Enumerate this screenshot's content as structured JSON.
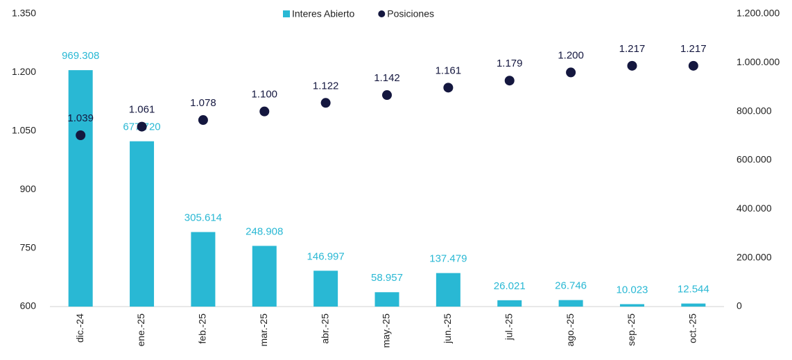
{
  "chart_data": {
    "type": "combo",
    "categories": [
      "dic.-24",
      "ene.-25",
      "feb.-25",
      "mar.-25",
      "abr.-25",
      "may.-25",
      "jun.-25",
      "jul.-25",
      "ago.-25",
      "sep.-25",
      "oct.-25"
    ],
    "series": [
      {
        "name": "Interes Abierto",
        "type": "bar",
        "axis": "y2",
        "color": "#29b8d4",
        "values": [
          969308,
          677720,
          305614,
          248908,
          146997,
          58957,
          137479,
          26021,
          26746,
          10023,
          12544
        ],
        "value_labels": [
          "969.308",
          "677.720",
          "305.614",
          "248.908",
          "146.997",
          "58.957",
          "137.479",
          "26.021",
          "26.746",
          "10.023",
          "12.544"
        ]
      },
      {
        "name": "Posiciones",
        "type": "scatter",
        "axis": "y",
        "color": "#14173f",
        "values": [
          1039,
          1061,
          1078,
          1100,
          1122,
          1142,
          1161,
          1179,
          1200,
          1217,
          1217
        ],
        "value_labels": [
          "1.039",
          "1.061",
          "1.078",
          "1.100",
          "1.122",
          "1.142",
          "1.161",
          "1.179",
          "1.200",
          "1.217",
          "1.217"
        ]
      }
    ],
    "ylim": [
      600,
      1350
    ],
    "yticks": [
      600,
      750,
      900,
      {
        "value": 1050,
        "label": "1.050"
      },
      {
        "value": 1200,
        "label": "1.200"
      },
      {
        "value": 1350,
        "label": "1.350"
      }
    ],
    "y2lim": [
      0,
      1200000
    ],
    "y2ticks": [
      0,
      {
        "value": 200000,
        "label": "200.000"
      },
      {
        "value": 400000,
        "label": "400.000"
      },
      {
        "value": 600000,
        "label": "600.000"
      },
      {
        "value": 800000,
        "label": "800.000"
      },
      {
        "value": 1000000,
        "label": "1.000.000"
      },
      {
        "value": 1200000,
        "label": "1.200.000"
      }
    ],
    "grid": false,
    "legend": "top"
  }
}
